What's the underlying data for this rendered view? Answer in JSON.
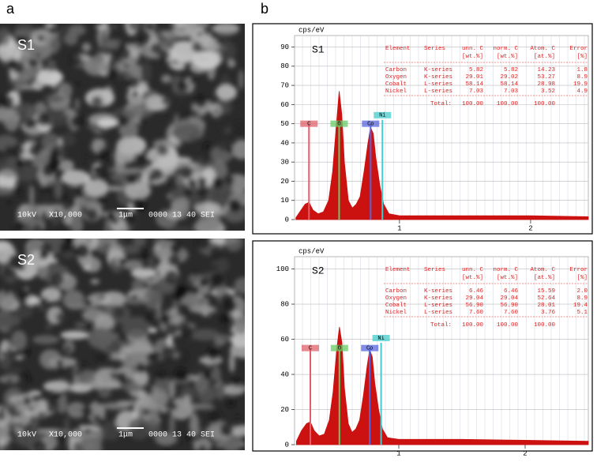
{
  "panel_labels": [
    "a",
    "b"
  ],
  "sem_images": [
    {
      "label": "S1",
      "voltage": "10kV",
      "magnification": "X10,000",
      "scale": "1μm",
      "code": "0000 13 40 SEI"
    },
    {
      "label": "S2",
      "voltage": "10kV",
      "magnification": "X10,000",
      "scale": "1μm",
      "code": "0000 13 40 SEI"
    }
  ],
  "spectra": [
    {
      "label": "S1",
      "y_unit": "cps/eV",
      "color": "#cc1111",
      "xlim": [
        0.2,
        2.44
      ],
      "ylim": [
        0,
        96
      ],
      "yticks": [
        0,
        10,
        20,
        30,
        40,
        50,
        60,
        70,
        80,
        90
      ],
      "xticks": [
        1,
        2
      ],
      "x": [
        0.21,
        0.25,
        0.28,
        0.31,
        0.34,
        0.38,
        0.42,
        0.46,
        0.49,
        0.52,
        0.54,
        0.56,
        0.58,
        0.61,
        0.64,
        0.67,
        0.7,
        0.73,
        0.76,
        0.78,
        0.8,
        0.82,
        0.85,
        0.88,
        0.92,
        1.0,
        1.2,
        1.5,
        2.0,
        2.44
      ],
      "y": [
        1,
        5,
        8,
        9,
        5,
        3,
        4,
        10,
        25,
        50,
        67,
        55,
        30,
        10,
        6,
        8,
        12,
        25,
        40,
        48,
        45,
        32,
        18,
        8,
        3,
        2,
        2,
        2,
        2,
        1.5
      ],
      "markers": [
        {
          "label": "C",
          "x": 0.31,
          "height": 50,
          "color": "#e0606a"
        },
        {
          "label": "O",
          "x": 0.54,
          "height": 50,
          "color": "#66cc66"
        },
        {
          "label": "Co",
          "x": 0.78,
          "height": 50,
          "color": "#5566dd"
        },
        {
          "label": "Ni",
          "x": 0.87,
          "height": 52,
          "color": "#44cccc"
        }
      ],
      "table": {
        "header": [
          "Element",
          "Series",
          "unn. C",
          "norm. C",
          "Atom. C",
          "Error"
        ],
        "units": [
          "[wt.%]",
          "[wt.%]",
          "[at.%]",
          "[%]"
        ],
        "rows": [
          [
            "Carbon",
            "K-series",
            "5.82",
            "5.82",
            "14.23",
            "1.8"
          ],
          [
            "Oxygen",
            "K-series",
            "29.01",
            "29.02",
            "53.27",
            "8.9"
          ],
          [
            "Cobalt",
            "L-series",
            "58.14",
            "58.14",
            "28.98",
            "19.9"
          ],
          [
            "Nickel",
            "L-series",
            "7.03",
            "7.03",
            "3.52",
            "4.9"
          ]
        ],
        "total": [
          "Total:",
          "100.00",
          "100.00",
          "100.00"
        ]
      }
    },
    {
      "label": "S2",
      "y_unit": "cps/eV",
      "color": "#cc1111",
      "xlim": [
        0.175,
        2.5
      ],
      "ylim": [
        0,
        107
      ],
      "yticks": [
        0,
        20,
        40,
        60,
        80,
        100
      ],
      "xticks": [
        1,
        2
      ],
      "x": [
        0.19,
        0.23,
        0.27,
        0.3,
        0.33,
        0.37,
        0.41,
        0.45,
        0.48,
        0.51,
        0.53,
        0.55,
        0.57,
        0.6,
        0.63,
        0.66,
        0.69,
        0.72,
        0.75,
        0.77,
        0.79,
        0.81,
        0.84,
        0.87,
        0.91,
        1.0,
        1.2,
        1.5,
        2.0,
        2.5
      ],
      "y": [
        2,
        8,
        12,
        13,
        8,
        5,
        6,
        14,
        30,
        55,
        67,
        58,
        32,
        12,
        7,
        9,
        14,
        28,
        45,
        54,
        50,
        35,
        20,
        9,
        4,
        3,
        3,
        3,
        2.5,
        2
      ],
      "markers": [
        {
          "label": "C",
          "x": 0.3,
          "height": 55,
          "color": "#e0606a"
        },
        {
          "label": "O",
          "x": 0.53,
          "height": 55,
          "color": "#66cc66"
        },
        {
          "label": "Co",
          "x": 0.77,
          "height": 55,
          "color": "#5566dd"
        },
        {
          "label": "Ni",
          "x": 0.86,
          "height": 58,
          "color": "#44cccc"
        }
      ],
      "table": {
        "header": [
          "Element",
          "Series",
          "unn. C",
          "norm. C",
          "Atom. C",
          "Error"
        ],
        "units": [
          "[wt.%]",
          "[wt.%]",
          "[at.%]",
          "[%]"
        ],
        "rows": [
          [
            "Carbon",
            "K-series",
            "6.46",
            "6.46",
            "15.59",
            "2.0"
          ],
          [
            "Oxygen",
            "K-series",
            "29.04",
            "29.04",
            "52.64",
            "8.9"
          ],
          [
            "Cobalt",
            "L-series",
            "56.90",
            "56.90",
            "28.01",
            "19.4"
          ],
          [
            "Nickel",
            "L-series",
            "7.60",
            "7.60",
            "3.76",
            "5.1"
          ]
        ],
        "total": [
          "Total:",
          "100.00",
          "100.00",
          "100.00"
        ]
      }
    }
  ]
}
